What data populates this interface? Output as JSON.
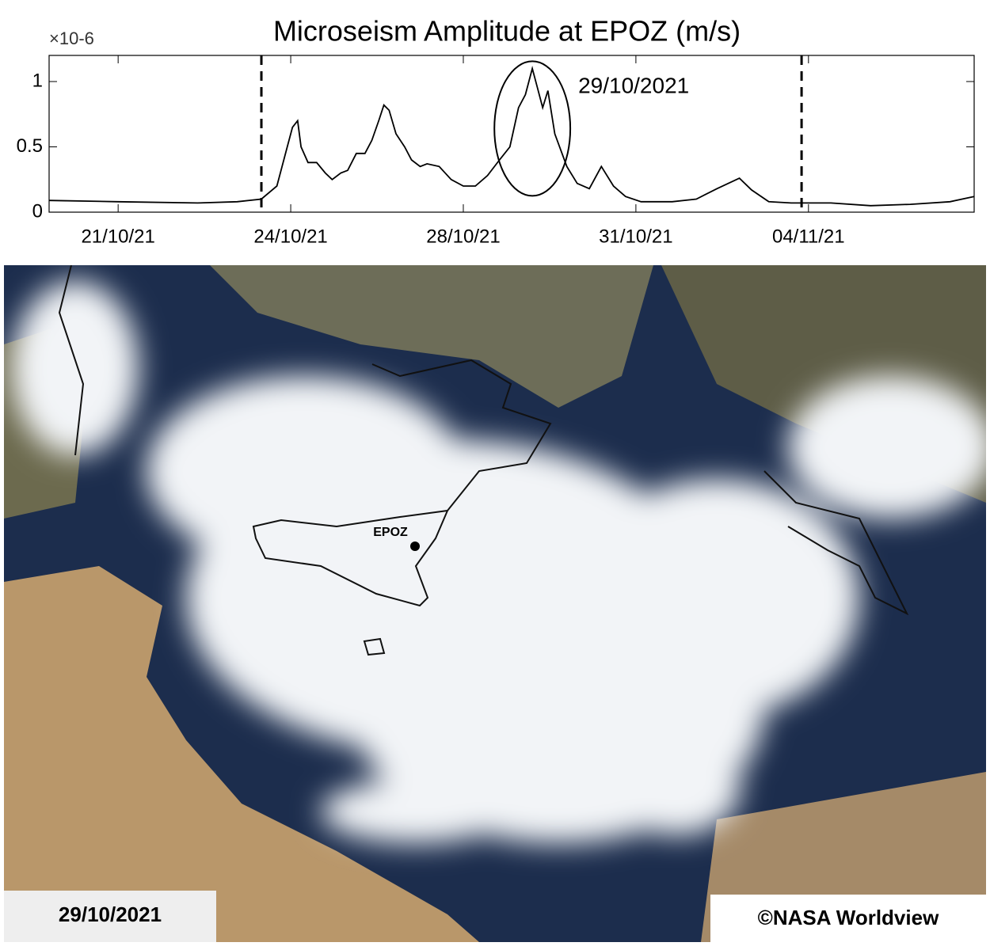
{
  "chart_data": {
    "type": "line",
    "title": "Microseism Amplitude at EPOZ (m/s)",
    "y_multiplier": "×10-6",
    "annotation": "29/10/2021",
    "xlim": [
      0.6,
      5.96
    ],
    "xticks": [
      {
        "value": 1,
        "label": "21/10/21"
      },
      {
        "value": 2,
        "label": "24/10/21"
      },
      {
        "value": 3,
        "label": "28/10/21"
      },
      {
        "value": 4,
        "label": "31/10/21"
      },
      {
        "value": 5,
        "label": "04/11/21"
      }
    ],
    "ylim": [
      0,
      1.2
    ],
    "yticks": [
      0,
      0.5,
      1
    ],
    "vlines": [
      1.83,
      4.96
    ],
    "highlight": {
      "x": 3.4,
      "y": 0.64,
      "width": 0.44,
      "height": 1.03
    },
    "series": [
      {
        "color": "#000000",
        "x": [
          0.6,
          1.0,
          1.46,
          1.69,
          1.83,
          1.92,
          1.98,
          2.01,
          2.04,
          2.06,
          2.1,
          2.15,
          2.2,
          2.24,
          2.29,
          2.33,
          2.38,
          2.43,
          2.47,
          2.51,
          2.54,
          2.57,
          2.61,
          2.66,
          2.7,
          2.75,
          2.79,
          2.86,
          2.93,
          3.0,
          3.07,
          3.14,
          3.21,
          3.27,
          3.32,
          3.36,
          3.4,
          3.43,
          3.46,
          3.49,
          3.53,
          3.6,
          3.66,
          3.73,
          3.8,
          3.87,
          3.94,
          4.03,
          4.21,
          4.35,
          4.47,
          4.6,
          4.67,
          4.77,
          4.9,
          5.13,
          5.36,
          5.59,
          5.82,
          5.96
        ],
        "values": [
          0.09,
          0.08,
          0.07,
          0.08,
          0.1,
          0.2,
          0.5,
          0.65,
          0.7,
          0.5,
          0.38,
          0.38,
          0.3,
          0.25,
          0.3,
          0.32,
          0.45,
          0.45,
          0.55,
          0.7,
          0.82,
          0.78,
          0.6,
          0.5,
          0.4,
          0.35,
          0.37,
          0.35,
          0.25,
          0.2,
          0.2,
          0.28,
          0.4,
          0.5,
          0.8,
          0.9,
          1.1,
          0.95,
          0.8,
          0.93,
          0.6,
          0.35,
          0.22,
          0.18,
          0.35,
          0.2,
          0.12,
          0.08,
          0.08,
          0.1,
          0.18,
          0.26,
          0.17,
          0.08,
          0.07,
          0.07,
          0.05,
          0.06,
          0.08,
          0.12
        ]
      }
    ]
  },
  "map": {
    "station": "EPOZ",
    "date": "29/10/2021",
    "credit": "©NASA Worldview"
  }
}
